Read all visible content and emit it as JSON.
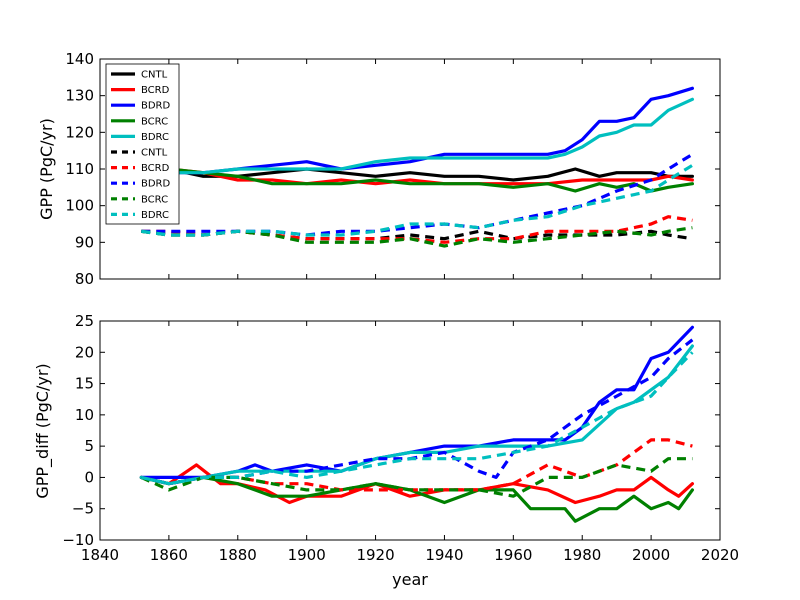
{
  "chart_data": [
    {
      "type": "line",
      "ylabel": "GPP (PgC/yr)",
      "xlabel": "",
      "xlim": [
        1840,
        2020
      ],
      "ylim": [
        80,
        140
      ],
      "yticks": [
        80,
        90,
        100,
        110,
        120,
        130,
        140
      ],
      "legend": {
        "placement": "top-left",
        "entries": [
          "CNTL",
          "BCRD",
          "BDRD",
          "BCRC",
          "BDRC",
          "CNTL",
          "BCRD",
          "BDRD",
          "BCRC",
          "BDRC"
        ]
      },
      "series": [
        {
          "name": "CNTL",
          "color": "#000000",
          "style": "solid",
          "x": [
            1852,
            1860,
            1870,
            1880,
            1890,
            1900,
            1910,
            1920,
            1930,
            1940,
            1950,
            1960,
            1970,
            1978,
            1985,
            1990,
            2000,
            2005,
            2012
          ],
          "y": [
            109,
            110,
            108,
            108,
            109,
            110,
            109,
            108,
            109,
            108,
            108,
            107,
            108,
            110,
            108,
            109,
            109,
            108,
            108
          ]
        },
        {
          "name": "BCRD",
          "color": "#ff0000",
          "style": "solid",
          "x": [
            1852,
            1860,
            1870,
            1880,
            1890,
            1900,
            1910,
            1920,
            1930,
            1940,
            1950,
            1960,
            1970,
            1980,
            1990,
            2000,
            2005,
            2012
          ],
          "y": [
            110,
            110,
            109,
            107,
            107,
            106,
            107,
            106,
            107,
            106,
            106,
            106,
            106,
            107,
            107,
            107,
            108,
            107
          ]
        },
        {
          "name": "BDRD",
          "color": "#0000ff",
          "style": "solid",
          "x": [
            1852,
            1860,
            1870,
            1880,
            1890,
            1900,
            1910,
            1920,
            1930,
            1940,
            1950,
            1960,
            1970,
            1975,
            1980,
            1985,
            1990,
            1995,
            2000,
            2005,
            2012
          ],
          "y": [
            108,
            109,
            109,
            110,
            111,
            112,
            110,
            111,
            112,
            114,
            114,
            114,
            114,
            115,
            118,
            123,
            123,
            124,
            129,
            130,
            132
          ]
        },
        {
          "name": "BCRC",
          "color": "#008000",
          "style": "solid",
          "x": [
            1852,
            1860,
            1870,
            1880,
            1890,
            1900,
            1910,
            1920,
            1930,
            1940,
            1950,
            1960,
            1970,
            1978,
            1985,
            1990,
            1995,
            2000,
            2005,
            2012
          ],
          "y": [
            108,
            110,
            109,
            108,
            106,
            106,
            106,
            107,
            106,
            106,
            106,
            105,
            106,
            104,
            106,
            105,
            106,
            104,
            105,
            106
          ]
        },
        {
          "name": "BDRC",
          "color": "#00bfbf",
          "style": "solid",
          "x": [
            1852,
            1860,
            1870,
            1880,
            1890,
            1900,
            1910,
            1920,
            1930,
            1940,
            1950,
            1960,
            1970,
            1975,
            1980,
            1985,
            1990,
            1995,
            2000,
            2005,
            2012
          ],
          "y": [
            108,
            109,
            109,
            110,
            110,
            110,
            110,
            112,
            113,
            113,
            113,
            113,
            113,
            114,
            116,
            119,
            120,
            122,
            122,
            126,
            129
          ]
        },
        {
          "name": "CNTL",
          "color": "#000000",
          "style": "dashed",
          "x": [
            1852,
            1860,
            1870,
            1880,
            1890,
            1900,
            1910,
            1920,
            1930,
            1940,
            1950,
            1960,
            1970,
            1980,
            1990,
            2000,
            2005,
            2012
          ],
          "y": [
            93,
            92,
            92,
            93,
            92,
            91,
            91,
            91,
            92,
            91,
            93,
            91,
            92,
            92,
            92,
            93,
            92,
            91
          ]
        },
        {
          "name": "BCRD",
          "color": "#ff0000",
          "style": "dashed",
          "x": [
            1852,
            1860,
            1870,
            1880,
            1890,
            1900,
            1910,
            1920,
            1930,
            1940,
            1950,
            1960,
            1970,
            1980,
            1990,
            2000,
            2005,
            2012
          ],
          "y": [
            93,
            93,
            92,
            93,
            92,
            91,
            91,
            91,
            91,
            90,
            91,
            91,
            93,
            93,
            93,
            95,
            97,
            96
          ]
        },
        {
          "name": "BDRD",
          "color": "#0000ff",
          "style": "dashed",
          "x": [
            1852,
            1860,
            1870,
            1880,
            1890,
            1900,
            1910,
            1920,
            1930,
            1940,
            1950,
            1960,
            1970,
            1980,
            1990,
            2000,
            2005,
            2012
          ],
          "y": [
            93,
            93,
            93,
            93,
            93,
            92,
            93,
            93,
            94,
            95,
            94,
            96,
            98,
            100,
            104,
            107,
            110,
            114
          ]
        },
        {
          "name": "BCRC",
          "color": "#008000",
          "style": "dashed",
          "x": [
            1852,
            1860,
            1870,
            1880,
            1890,
            1900,
            1910,
            1920,
            1930,
            1940,
            1950,
            1960,
            1970,
            1980,
            1990,
            2000,
            2005,
            2012
          ],
          "y": [
            93,
            92,
            92,
            93,
            92,
            90,
            90,
            90,
            91,
            89,
            91,
            90,
            91,
            92,
            93,
            92,
            93,
            94
          ]
        },
        {
          "name": "BDRC",
          "color": "#00bfbf",
          "style": "dashed",
          "x": [
            1852,
            1860,
            1870,
            1880,
            1890,
            1900,
            1910,
            1920,
            1930,
            1940,
            1950,
            1960,
            1970,
            1980,
            1990,
            2000,
            2005,
            2012
          ],
          "y": [
            93,
            92,
            92,
            93,
            93,
            92,
            92,
            93,
            95,
            95,
            94,
            96,
            97,
            100,
            102,
            104,
            107,
            111
          ]
        }
      ]
    },
    {
      "type": "line",
      "ylabel": "GPP_diff (PgC/yr)",
      "xlabel": "year",
      "xlim": [
        1840,
        2020
      ],
      "ylim": [
        -10,
        25
      ],
      "xticks": [
        1840,
        1860,
        1880,
        1900,
        1920,
        1940,
        1960,
        1980,
        2000,
        2020
      ],
      "yticks": [
        -10,
        -5,
        0,
        5,
        10,
        15,
        20,
        25
      ],
      "series": [
        {
          "name": "BCRD",
          "color": "#ff0000",
          "style": "solid",
          "x": [
            1852,
            1860,
            1868,
            1875,
            1880,
            1888,
            1895,
            1900,
            1910,
            1920,
            1930,
            1940,
            1950,
            1960,
            1970,
            1978,
            1985,
            1990,
            1995,
            2000,
            2005,
            2008,
            2012
          ],
          "y": [
            0,
            -1,
            2,
            -1,
            -1,
            -2,
            -4,
            -3,
            -3,
            -1,
            -3,
            -2,
            -2,
            -1,
            -2,
            -4,
            -3,
            -2,
            -2,
            0,
            -2,
            -3,
            -1
          ]
        },
        {
          "name": "BDRD",
          "color": "#0000ff",
          "style": "solid",
          "x": [
            1852,
            1860,
            1870,
            1880,
            1885,
            1890,
            1900,
            1910,
            1920,
            1930,
            1940,
            1950,
            1960,
            1965,
            1970,
            1975,
            1980,
            1985,
            1990,
            1995,
            2000,
            2005,
            2012
          ],
          "y": [
            0,
            0,
            0,
            1,
            2,
            1,
            2,
            1,
            3,
            4,
            5,
            5,
            6,
            6,
            6,
            6,
            8,
            12,
            14,
            14,
            19,
            20,
            24
          ]
        },
        {
          "name": "BCRC",
          "color": "#008000",
          "style": "solid",
          "x": [
            1852,
            1860,
            1870,
            1880,
            1890,
            1900,
            1910,
            1920,
            1930,
            1940,
            1950,
            1960,
            1965,
            1970,
            1975,
            1978,
            1985,
            1990,
            1995,
            2000,
            2005,
            2008,
            2012
          ],
          "y": [
            0,
            -1,
            0,
            -1,
            -3,
            -3,
            -2,
            -1,
            -2,
            -4,
            -2,
            -2,
            -5,
            -5,
            -5,
            -7,
            -5,
            -5,
            -3,
            -5,
            -4,
            -5,
            -2
          ]
        },
        {
          "name": "BDRC",
          "color": "#00bfbf",
          "style": "solid",
          "x": [
            1852,
            1860,
            1870,
            1880,
            1890,
            1900,
            1910,
            1920,
            1930,
            1940,
            1950,
            1960,
            1970,
            1980,
            1990,
            1995,
            2000,
            2005,
            2012
          ],
          "y": [
            0,
            -1,
            0,
            1,
            1,
            1,
            1,
            3,
            4,
            4,
            5,
            5,
            5,
            6,
            11,
            12,
            14,
            16,
            21
          ]
        },
        {
          "name": "BCRD",
          "color": "#ff0000",
          "style": "dashed",
          "x": [
            1852,
            1860,
            1870,
            1880,
            1890,
            1900,
            1910,
            1920,
            1930,
            1940,
            1950,
            1960,
            1970,
            1980,
            1990,
            2000,
            2005,
            2012
          ],
          "y": [
            0,
            -1,
            0,
            0,
            -1,
            -1,
            -2,
            -2,
            -2,
            -2,
            -2,
            -1,
            2,
            0,
            2,
            6,
            6,
            5
          ]
        },
        {
          "name": "BDRD",
          "color": "#0000ff",
          "style": "dashed",
          "x": [
            1852,
            1860,
            1870,
            1880,
            1890,
            1900,
            1910,
            1920,
            1930,
            1940,
            1950,
            1955,
            1960,
            1970,
            1980,
            1990,
            2000,
            2005,
            2012
          ],
          "y": [
            0,
            -1,
            0,
            0,
            1,
            1,
            2,
            3,
            3,
            4,
            1,
            0,
            4,
            6,
            10,
            13,
            16,
            19,
            22
          ]
        },
        {
          "name": "BCRC",
          "color": "#008000",
          "style": "dashed",
          "x": [
            1852,
            1860,
            1870,
            1880,
            1890,
            1900,
            1910,
            1920,
            1930,
            1940,
            1950,
            1960,
            1970,
            1980,
            1990,
            2000,
            2005,
            2012
          ],
          "y": [
            0,
            -2,
            0,
            0,
            -1,
            -2,
            -2,
            -1,
            -2,
            -2,
            -2,
            -3,
            0,
            0,
            2,
            1,
            3,
            3
          ]
        },
        {
          "name": "BDRC",
          "color": "#00bfbf",
          "style": "dashed",
          "x": [
            1852,
            1860,
            1870,
            1880,
            1890,
            1900,
            1910,
            1920,
            1930,
            1940,
            1950,
            1960,
            1970,
            1980,
            1990,
            2000,
            2005,
            2012
          ],
          "y": [
            0,
            -1,
            0,
            0,
            1,
            0,
            1,
            2,
            3,
            3,
            3,
            4,
            5,
            8,
            11,
            13,
            16,
            20
          ]
        }
      ]
    }
  ]
}
